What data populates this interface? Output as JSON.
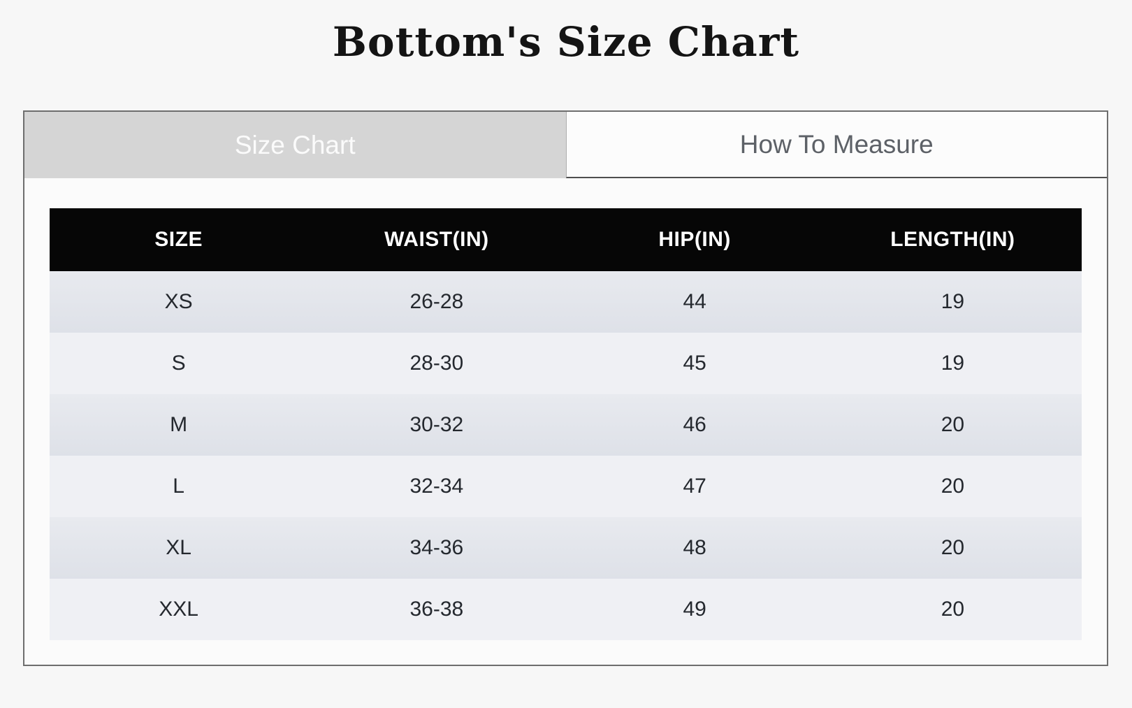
{
  "page": {
    "title": "Bottom's Size Chart"
  },
  "tabs": [
    {
      "label": "Size Chart",
      "active": true
    },
    {
      "label": "How To Measure",
      "active": false
    }
  ],
  "size_table": {
    "headers": [
      "SIZE",
      "WAIST(IN)",
      "HIP(IN)",
      "LENGTH(IN)"
    ],
    "rows": [
      [
        "XS",
        "26-28",
        "44",
        "19"
      ],
      [
        "S",
        "28-30",
        "45",
        "19"
      ],
      [
        "M",
        "30-32",
        "46",
        "20"
      ],
      [
        "L",
        "32-34",
        "47",
        "20"
      ],
      [
        "XL",
        "34-36",
        "48",
        "20"
      ],
      [
        "XXL",
        "36-38",
        "49",
        "20"
      ]
    ]
  },
  "colors": {
    "page_background": "#f7f7f7",
    "panel_border": "#6e6e6e",
    "active_tab_background": "#d5d5d5",
    "active_tab_text": "#fbfbfb",
    "inactive_tab_background": "#fcfcfc",
    "inactive_tab_text": "#5d6167",
    "header_row_background": "#060606",
    "header_row_text": "#ffffff",
    "row_odd_background": "#e2e5eb",
    "row_even_background": "#eff0f4",
    "cell_text": "#24282e",
    "title_text": "#141414"
  }
}
